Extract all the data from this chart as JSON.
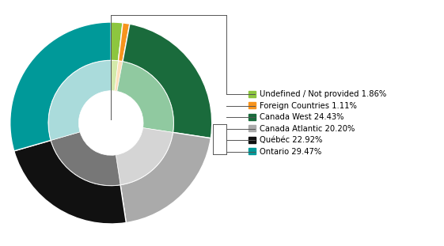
{
  "labels": [
    "Undefined / Not provided",
    "Foreign Countries",
    "Canada West",
    "Canada Atlantic",
    "Québéc",
    "Ontario"
  ],
  "values": [
    1.86,
    1.11,
    24.43,
    20.2,
    22.92,
    29.47
  ],
  "outer_colors": [
    "#8dc63f",
    "#f7941d",
    "#1a6b3c",
    "#aaaaaa",
    "#111111",
    "#009999"
  ],
  "inner_colors": [
    "#d4eaaa",
    "#fde0bb",
    "#90c9a0",
    "#d5d5d5",
    "#777777",
    "#aadbdb"
  ],
  "legend_labels": [
    "Undefined / Not provided 1.86%",
    "Foreign Countries 1.11%",
    "Canada West 24.43%",
    "Canada Atlantic 20.20%",
    "Québéc 22.92%",
    "Ontario 29.47%"
  ],
  "legend_colors": [
    "#8dc63f",
    "#f7941d",
    "#1a6b3c",
    "#aaaaaa",
    "#111111",
    "#009999"
  ],
  "background_color": "#ffffff",
  "line_color": "#555555"
}
